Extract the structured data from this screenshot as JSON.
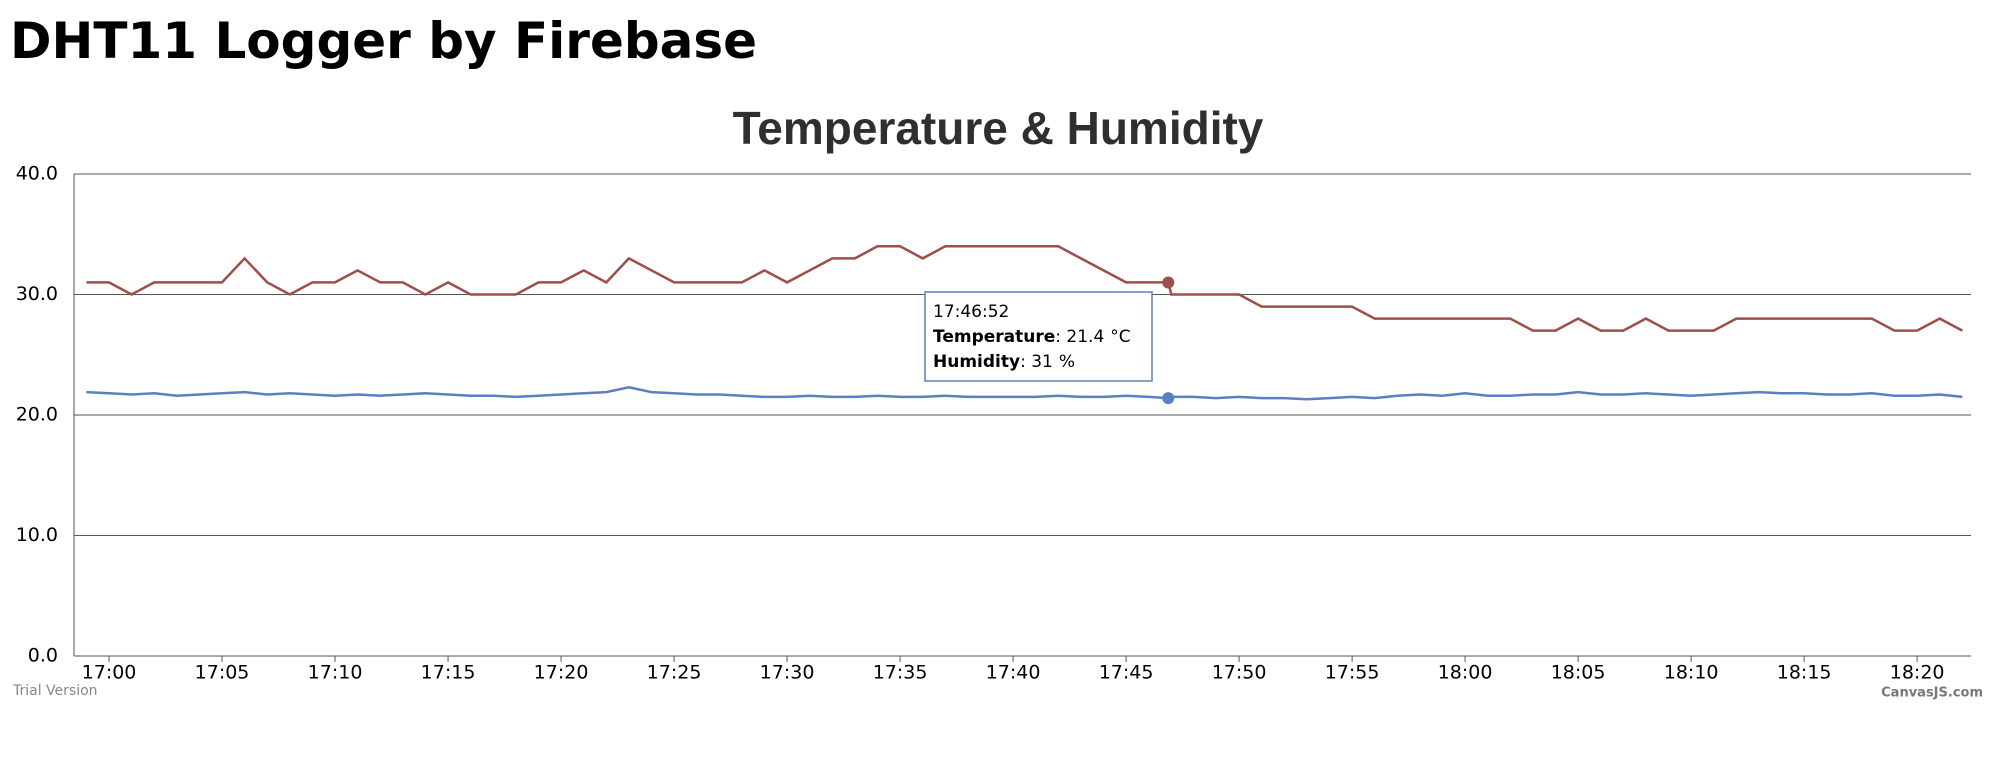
{
  "page": {
    "heading": "DHT11 Logger by Firebase"
  },
  "chart_data": {
    "type": "line",
    "title": "Temperature & Humidity",
    "x": [
      "16:59",
      "17:00",
      "17:01",
      "17:02",
      "17:03",
      "17:04",
      "17:05",
      "17:06",
      "17:07",
      "17:08",
      "17:09",
      "17:10",
      "17:11",
      "17:12",
      "17:13",
      "17:14",
      "17:15",
      "17:16",
      "17:17",
      "17:18",
      "17:19",
      "17:20",
      "17:21",
      "17:22",
      "17:23",
      "17:24",
      "17:25",
      "17:26",
      "17:27",
      "17:28",
      "17:29",
      "17:30",
      "17:31",
      "17:32",
      "17:33",
      "17:34",
      "17:35",
      "17:36",
      "17:37",
      "17:38",
      "17:39",
      "17:40",
      "17:41",
      "17:42",
      "17:43",
      "17:44",
      "17:45",
      "17:46",
      "17:46:52",
      "17:47",
      "17:48",
      "17:49",
      "17:50",
      "17:51",
      "17:52",
      "17:53",
      "17:54",
      "17:55",
      "17:56",
      "17:57",
      "17:58",
      "17:59",
      "18:00",
      "18:01",
      "18:02",
      "18:03",
      "18:04",
      "18:05",
      "18:06",
      "18:07",
      "18:08",
      "18:09",
      "18:10",
      "18:11",
      "18:12",
      "18:13",
      "18:14",
      "18:15",
      "18:16",
      "18:17",
      "18:18",
      "18:19",
      "18:20",
      "18:21",
      "18:22"
    ],
    "series": [
      {
        "name": "Temperature",
        "unit": "°C",
        "color": "#5b7fbf",
        "values": [
          21.9,
          21.8,
          21.7,
          21.8,
          21.6,
          21.7,
          21.8,
          21.9,
          21.7,
          21.8,
          21.7,
          21.6,
          21.7,
          21.6,
          21.7,
          21.8,
          21.7,
          21.6,
          21.6,
          21.5,
          21.6,
          21.7,
          21.8,
          21.9,
          22.3,
          21.9,
          21.8,
          21.7,
          21.7,
          21.6,
          21.5,
          21.5,
          21.6,
          21.5,
          21.5,
          21.6,
          21.5,
          21.5,
          21.6,
          21.5,
          21.5,
          21.5,
          21.5,
          21.6,
          21.5,
          21.5,
          21.6,
          21.5,
          21.4,
          21.5,
          21.5,
          21.4,
          21.5,
          21.4,
          21.4,
          21.3,
          21.4,
          21.5,
          21.4,
          21.6,
          21.7,
          21.6,
          21.8,
          21.6,
          21.6,
          21.7,
          21.7,
          21.9,
          21.7,
          21.7,
          21.8,
          21.7,
          21.6,
          21.7,
          21.8,
          21.9,
          21.8,
          21.8,
          21.7,
          21.7,
          21.8,
          21.6,
          21.6,
          21.7,
          21.5
        ]
      },
      {
        "name": "Humidity",
        "unit": "%",
        "color": "#9e4f4a",
        "values": [
          31,
          31,
          30,
          31,
          31,
          31,
          31,
          33,
          31,
          30,
          31,
          31,
          32,
          31,
          31,
          30,
          31,
          30,
          30,
          30,
          31,
          31,
          32,
          31,
          33,
          32,
          31,
          31,
          31,
          31,
          32,
          31,
          32,
          33,
          33,
          34,
          34,
          33,
          34,
          34,
          34,
          34,
          34,
          34,
          33,
          32,
          31,
          31,
          31,
          30,
          30,
          30,
          30,
          29,
          29,
          29,
          29,
          29,
          28,
          28,
          28,
          28,
          28,
          28,
          28,
          27,
          27,
          28,
          27,
          27,
          28,
          27,
          27,
          27,
          28,
          28,
          28,
          28,
          28,
          28,
          28,
          27,
          27,
          28,
          27
        ]
      }
    ],
    "xlim": [
      "16:58:27",
      "18:22:23"
    ],
    "xticks": [
      "17:00",
      "17:05",
      "17:10",
      "17:15",
      "17:20",
      "17:25",
      "17:30",
      "17:35",
      "17:40",
      "17:45",
      "17:50",
      "17:55",
      "18:00",
      "18:05",
      "18:10",
      "18:15",
      "18:20"
    ],
    "ylim": [
      0,
      40
    ],
    "yticks": [
      {
        "value": 0,
        "label": "0.0"
      },
      {
        "value": 10,
        "label": "10.0"
      },
      {
        "value": 20,
        "label": "20.0"
      },
      {
        "value": 30,
        "label": "30.0"
      },
      {
        "value": 40,
        "label": "40.0"
      }
    ],
    "grid": true,
    "highlight": "17:46:52",
    "watermark": "Trial Version",
    "credit": "CanvasJS.com"
  }
}
